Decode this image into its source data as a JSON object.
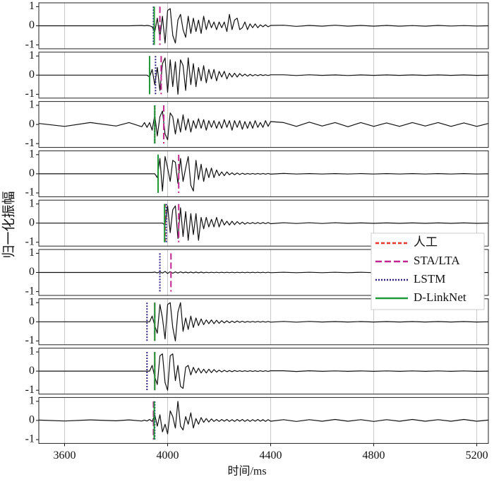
{
  "chart_data": {
    "type": "line",
    "xlabel": "时间/ms",
    "ylabel": "归一化振幅",
    "xlim": [
      3500,
      5245
    ],
    "xticks": [
      3600,
      4000,
      4400,
      4800,
      5200
    ],
    "ylim": [
      -1.2,
      1.2
    ],
    "yticks": [
      -1,
      0,
      1
    ],
    "grid": true,
    "legend": "right",
    "series": [
      {
        "name": "人工",
        "color": "#e8392b",
        "dash": "5,3"
      },
      {
        "name": "STA/LTA",
        "color": "#c0288f",
        "dash": "9,4"
      },
      {
        "name": "LSTM",
        "color": "#2b2080",
        "dash": "2,2"
      },
      {
        "name": "D-LinkNet",
        "color": "#1f9a3a",
        "dash": "none"
      }
    ],
    "x": [
      3500,
      3600,
      3700,
      3800,
      3850,
      3900,
      3910,
      3920,
      3930,
      3940,
      3950,
      3960,
      3970,
      3980,
      3990,
      4000,
      4010,
      4020,
      4030,
      4040,
      4050,
      4060,
      4070,
      4080,
      4090,
      4100,
      4110,
      4120,
      4130,
      4140,
      4150,
      4160,
      4170,
      4180,
      4190,
      4200,
      4210,
      4220,
      4230,
      4240,
      4250,
      4260,
      4270,
      4280,
      4290,
      4300,
      4310,
      4320,
      4330,
      4340,
      4350,
      4360,
      4370,
      4380,
      4390,
      4400,
      4450,
      4500,
      4550,
      4600,
      4650,
      4700,
      4750,
      4800,
      4850,
      4900,
      4950,
      5000,
      5050,
      5100,
      5150,
      5200,
      5245
    ],
    "panels": [
      {
        "picks": [
          3948,
          3970,
          3945,
          3948
        ],
        "values": [
          0,
          0,
          0,
          0,
          0,
          0.02,
          0,
          0.02,
          0,
          -0.05,
          -0.3,
          0.4,
          -0.6,
          0.5,
          -0.9,
          0.8,
          0.9,
          -0.5,
          -0.9,
          0.3,
          0.6,
          -0.2,
          -0.6,
          0.5,
          -0.4,
          0.4,
          -0.3,
          0.3,
          -0.4,
          0.5,
          -0.2,
          0.3,
          -0.1,
          0.2,
          -0.2,
          0.2,
          -0.1,
          0.2,
          -0.3,
          0.6,
          -0.2,
          0.3,
          0.4,
          -0.2,
          -0.1,
          0.2,
          -0.2,
          0.1,
          -0.1,
          0.1,
          -0.1,
          0.05,
          -0.05,
          0.05,
          -0.05,
          0.02,
          0.03,
          -0.03,
          0.02,
          -0.02,
          0.03,
          -0.02,
          0.02,
          -0.02,
          0.02,
          -0.02,
          0.01,
          -0.02,
          0.02,
          -0.01,
          0.01,
          -0.01,
          0
        ]
      },
      {
        "picks": [
          3930,
          3975,
          3953,
          3930
        ],
        "values": [
          0,
          0,
          0,
          0,
          0,
          0,
          0,
          0,
          -0.1,
          0.3,
          -0.5,
          0.4,
          -0.8,
          0.6,
          0.9,
          -0.9,
          0.8,
          -0.6,
          0.7,
          -1,
          0.8,
          0.5,
          -0.8,
          0.9,
          -0.5,
          0.6,
          -0.6,
          0.4,
          -0.3,
          0.5,
          -0.4,
          0.3,
          -0.2,
          0.3,
          -0.3,
          0.2,
          -0.1,
          0.2,
          -0.2,
          0.1,
          -0.1,
          0.1,
          -0.1,
          0.08,
          -0.05,
          0.05,
          -0.05,
          0.04,
          -0.04,
          0.03,
          -0.03,
          0.03,
          -0.02,
          0.02,
          -0.02,
          0.02,
          0.02,
          -0.02,
          0.02,
          -0.01,
          0.01,
          -0.02,
          0.01,
          -0.01,
          0.01,
          -0.01,
          0.01,
          -0.01,
          0.01,
          -0.01,
          0.01,
          -0.01,
          0
        ]
      },
      {
        "picks": [
          3950,
          3985,
          3950,
          3950
        ],
        "values": [
          0.05,
          -0.1,
          0.1,
          -0.08,
          0.1,
          -0.12,
          0.1,
          -0.15,
          0.1,
          -0.3,
          0.5,
          -0.6,
          0.4,
          0.7,
          -0.5,
          -0.8,
          0.6,
          0.4,
          -0.5,
          0.3,
          -0.4,
          0.5,
          -0.3,
          0.3,
          -0.4,
          0.2,
          -0.2,
          0.3,
          -0.2,
          0.25,
          -0.3,
          0.2,
          -0.15,
          0.2,
          -0.2,
          0.15,
          -0.2,
          0.25,
          -0.15,
          0.2,
          -0.3,
          0.2,
          -0.15,
          0.2,
          -0.25,
          0.15,
          -0.2,
          0.15,
          -0.2,
          0.2,
          -0.15,
          0.1,
          -0.15,
          0.2,
          -0.1,
          0.15,
          0.1,
          -0.1,
          0.12,
          -0.08,
          0.1,
          -0.12,
          0.1,
          -0.1,
          0.08,
          -0.1,
          0.1,
          -0.08,
          0.1,
          -0.1,
          0.08,
          -0.1,
          0.05
        ]
      },
      {
        "picks": [
          3963,
          4043,
          3963,
          3963
        ],
        "values": [
          0,
          0,
          0,
          0,
          0,
          0,
          0,
          0,
          0,
          0,
          0,
          -0.2,
          0.8,
          -0.9,
          0.9,
          0.3,
          -0.4,
          0.7,
          0.6,
          -0.5,
          0.8,
          -0.4,
          0.3,
          0.9,
          -0.6,
          -0.9,
          0.7,
          -0.3,
          0.5,
          -0.4,
          0.3,
          -0.2,
          0.3,
          -0.2,
          0.2,
          -0.1,
          0.1,
          -0.1,
          0.1,
          -0.05,
          0.05,
          -0.05,
          0.04,
          -0.04,
          0.03,
          -0.03,
          0.02,
          -0.02,
          0.02,
          -0.02,
          0.02,
          -0.02,
          0.02,
          -0.02,
          0.02,
          -0.02,
          0.02,
          -0.01,
          0.01,
          -0.01,
          0.01,
          -0.01,
          0.01,
          -0.01,
          0.01,
          -0.01,
          0.01,
          -0.01,
          0.01,
          -0.01,
          0.01,
          -0.01,
          0
        ]
      },
      {
        "picks": [
          3990,
          4043,
          3995,
          3988
        ],
        "values": [
          0,
          0,
          0,
          0,
          0,
          0,
          0,
          0,
          0,
          0,
          0,
          0,
          0,
          0,
          -0.1,
          0.9,
          -0.5,
          0.7,
          0.9,
          -0.8,
          0.8,
          -0.7,
          0.6,
          -0.9,
          0.5,
          -0.6,
          0.5,
          -0.9,
          0.3,
          -0.3,
          0.3,
          -0.2,
          0.2,
          -0.2,
          0.3,
          -0.2,
          0.2,
          -0.1,
          0.1,
          -0.1,
          0.1,
          -0.08,
          0.08,
          -0.05,
          0.05,
          -0.05,
          0.03,
          -0.03,
          0.03,
          -0.03,
          0.03,
          -0.03,
          0.03,
          -0.03,
          0.03,
          -0.03,
          0.02,
          -0.02,
          0.02,
          -0.02,
          0.02,
          -0.01,
          0.01,
          -0.01,
          0.01,
          -0.01,
          0.01,
          -0.01,
          0.01,
          -0.01,
          0.01,
          -0.01,
          0
        ]
      },
      {
        "picks": [
          null,
          4013,
          3970,
          null
        ],
        "values": [
          0,
          0,
          0,
          0,
          0,
          0,
          0,
          0,
          0,
          0,
          0.02,
          -0.02,
          0.03,
          -0.03,
          0.05,
          -0.05,
          0.04,
          -0.04,
          0.03,
          -0.03,
          0.03,
          -0.02,
          0.02,
          -0.02,
          0.02,
          -0.02,
          0.02,
          -0.02,
          0.02,
          -0.02,
          0.01,
          -0.01,
          0.01,
          -0.01,
          0.01,
          -0.01,
          0.01,
          -0.01,
          0.01,
          -0.01,
          0.01,
          -0.01,
          0.01,
          -0.01,
          0.01,
          -0.01,
          0.01,
          -0.01,
          0.01,
          -0.01,
          0.01,
          -0.01,
          0.01,
          -0.01,
          0.01,
          -0.01,
          0.01,
          -0.01,
          0.01,
          -0.01,
          0.01,
          -0.01,
          0.01,
          -0.01,
          0.01,
          -0.01,
          0.01,
          -0.01,
          0.01,
          -0.01,
          0.01,
          -0.01,
          0
        ]
      },
      {
        "picks": [
          3950,
          3950,
          3920,
          3950
        ],
        "values": [
          0,
          0,
          0,
          0,
          0,
          0,
          0,
          0,
          0,
          0.3,
          -0.2,
          -0.6,
          0.9,
          0.2,
          -0.9,
          0.9,
          1,
          -0.3,
          -1,
          0.5,
          1,
          -0.5,
          0.2,
          -0.4,
          0.3,
          -0.3,
          0.2,
          -0.2,
          0.15,
          -0.15,
          0.1,
          -0.1,
          0.1,
          -0.1,
          0.08,
          -0.08,
          0.06,
          -0.06,
          0.05,
          -0.05,
          0.04,
          -0.04,
          0.04,
          -0.03,
          0.03,
          -0.03,
          0.02,
          -0.02,
          0.02,
          -0.02,
          0.02,
          -0.02,
          0.02,
          -0.02,
          0.02,
          -0.02,
          0.02,
          -0.02,
          0.02,
          -0.01,
          0.01,
          -0.01,
          0.01,
          -0.01,
          0.01,
          -0.01,
          0.01,
          -0.01,
          0.01,
          -0.01,
          0.01,
          -0.01,
          0
        ]
      },
      {
        "picks": [
          3950,
          3950,
          3920,
          3950
        ],
        "values": [
          0,
          0,
          0,
          0,
          0,
          0,
          0,
          0,
          0,
          0.3,
          -0.3,
          -0.7,
          0.8,
          0.9,
          -0.6,
          -1,
          0.8,
          0.9,
          -0.5,
          0.3,
          -0.8,
          -0.9,
          0.2,
          0.3,
          -0.2,
          0.2,
          -0.1,
          0.15,
          -0.1,
          0.1,
          -0.1,
          0.1,
          -0.08,
          0.08,
          -0.05,
          0.05,
          -0.04,
          0.04,
          -0.03,
          0.03,
          -0.03,
          0.03,
          -0.02,
          0.02,
          -0.02,
          0.02,
          -0.02,
          0.02,
          -0.02,
          0.02,
          -0.02,
          0.02,
          -0.02,
          0.02,
          -0.02,
          0.02,
          0.02,
          -0.02,
          0.02,
          -0.01,
          0.01,
          -0.01,
          0.01,
          -0.01,
          0.01,
          -0.01,
          0.01,
          -0.01,
          0.01,
          -0.01,
          0.01,
          -0.01,
          0
        ]
      },
      {
        "picks": [
          3948,
          3945,
          3950,
          3948
        ],
        "values": [
          0.02,
          -0.03,
          0.03,
          -0.02,
          0.03,
          -0.03,
          0.02,
          -0.03,
          0.05,
          -0.05,
          0.3,
          -0.3,
          0.3,
          -0.6,
          -0.2,
          -0.7,
          0.5,
          0.2,
          -0.4,
          1,
          -0.3,
          -0.5,
          0.2,
          -0.2,
          0.4,
          -0.4,
          0.1,
          -0.2,
          0.15,
          -0.1,
          0.1,
          -0.08,
          0.08,
          -0.05,
          0.05,
          -0.05,
          0.05,
          -0.04,
          0.05,
          -0.05,
          0.04,
          -0.05,
          0.05,
          -0.04,
          0.05,
          -0.05,
          0.04,
          -0.05,
          0.04,
          -0.04,
          0.05,
          -0.04,
          0.04,
          -0.05,
          0.04,
          -0.04,
          0.04,
          -0.05,
          0.04,
          -0.04,
          0.05,
          -0.04,
          0.04,
          -0.05,
          0.04,
          -0.04,
          0.05,
          -0.04,
          0.04,
          -0.04,
          0.05,
          -0.04,
          0.02
        ]
      }
    ]
  }
}
